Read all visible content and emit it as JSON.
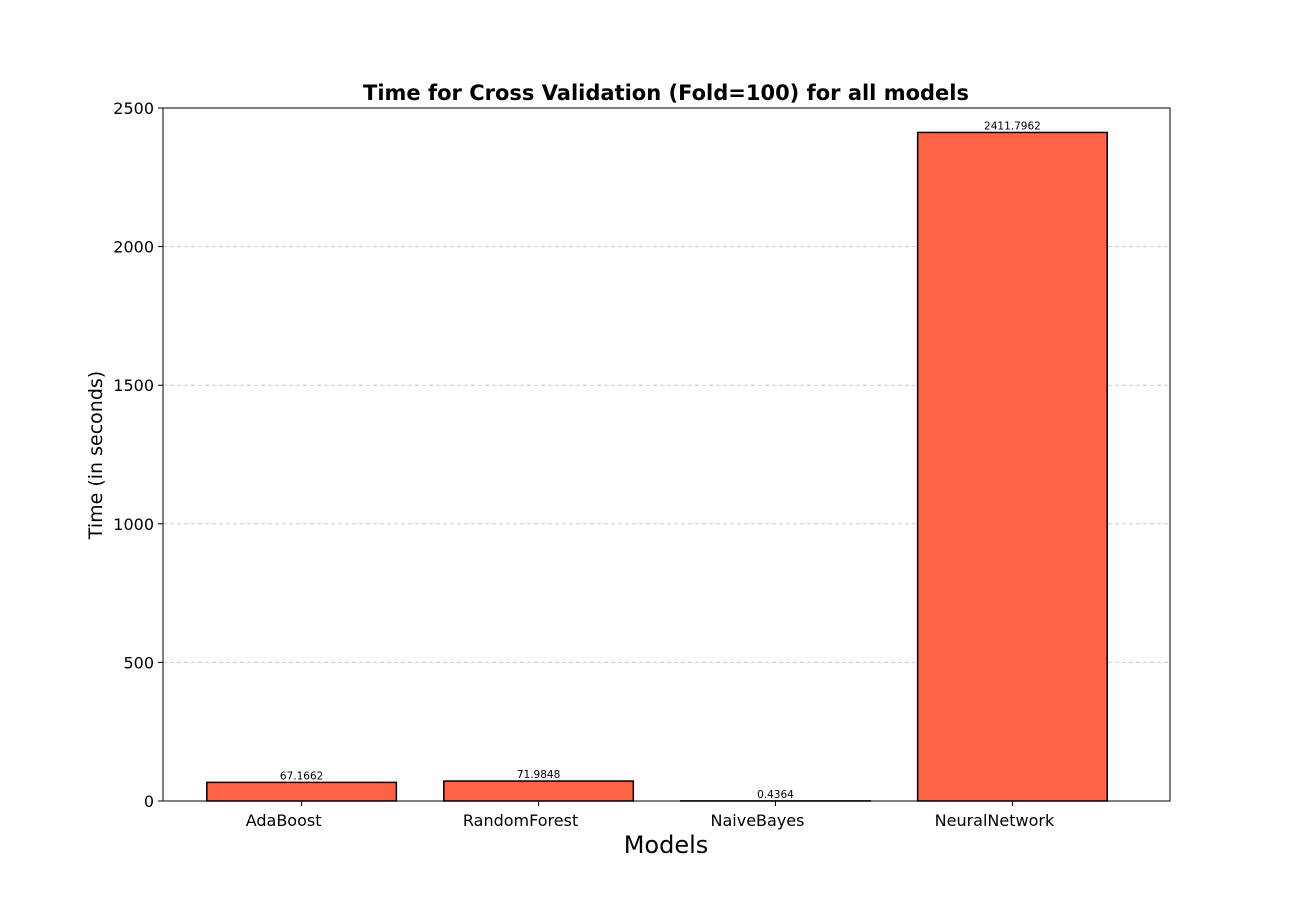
{
  "chart_data": {
    "type": "bar",
    "title": "Time for Cross Validation (Fold=100) for all models",
    "xlabel": "Models",
    "ylabel": "Time (in seconds)",
    "categories": [
      "AdaBoost",
      "RandomForest",
      "NaiveBayes",
      "NeuralNetwork"
    ],
    "values": [
      67.1662,
      71.9848,
      0.4364,
      2411.7962
    ],
    "data_labels": [
      "67.1662",
      "71.9848",
      "0.4364",
      "2411.7962"
    ],
    "ylim": [
      0,
      2500
    ],
    "yticks": [
      0,
      500,
      1000,
      1500,
      2000,
      2500
    ],
    "grid": "y-dashed",
    "bar_color": "#ff6347",
    "edge_color": "#000000"
  }
}
